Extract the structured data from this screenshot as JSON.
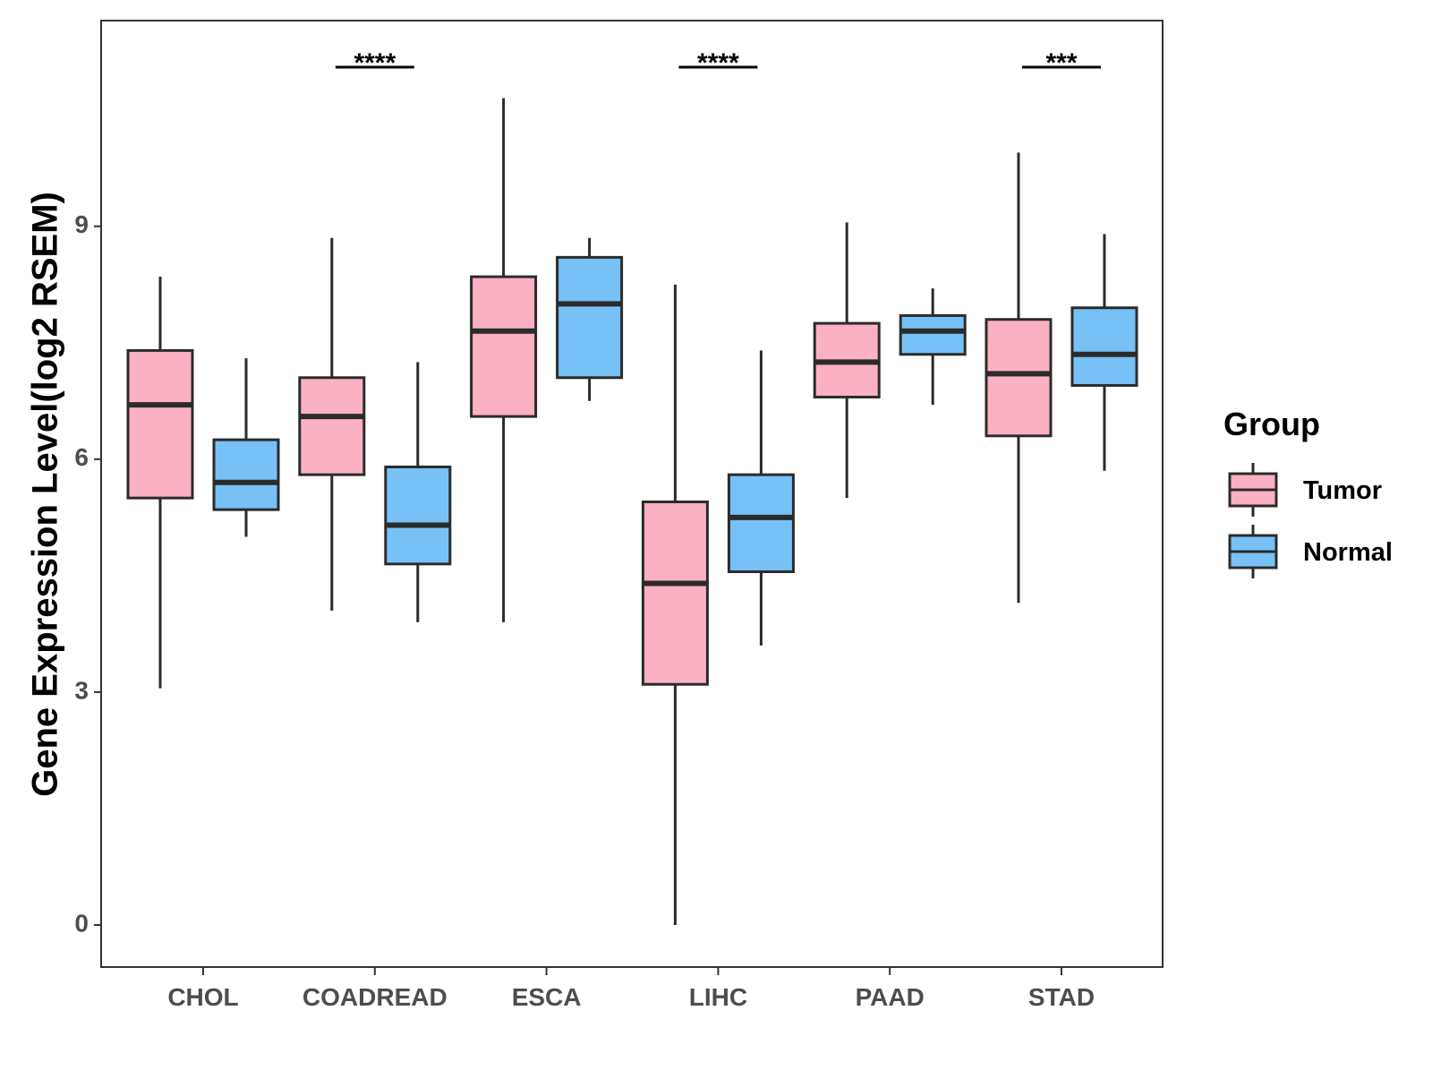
{
  "chart_data": {
    "type": "boxplot",
    "title": "",
    "xlabel": "",
    "ylabel": "Gene Expression Level(log2 RSEM)",
    "ylim": [
      -0.5,
      11.7
    ],
    "yticks": [
      0,
      3,
      6,
      9
    ],
    "grid": false,
    "categories": [
      "CHOL",
      "COADREAD",
      "ESCA",
      "LIHC",
      "PAAD",
      "STAD"
    ],
    "legend": {
      "title": "Group",
      "position": "right",
      "entries": [
        "Tumor",
        "Normal"
      ]
    },
    "series": [
      {
        "name": "Tumor",
        "color": "#fbb1c3",
        "boxes": [
          {
            "category": "CHOL",
            "min": 3.05,
            "q1": 5.5,
            "median": 6.7,
            "q3": 7.4,
            "max": 8.35
          },
          {
            "category": "COADREAD",
            "min": 4.05,
            "q1": 5.8,
            "median": 6.55,
            "q3": 7.05,
            "max": 8.85
          },
          {
            "category": "ESCA",
            "min": 3.9,
            "q1": 6.55,
            "median": 7.65,
            "q3": 8.35,
            "max": 10.65
          },
          {
            "category": "LIHC",
            "min": 0.0,
            "q1": 3.1,
            "median": 4.4,
            "q3": 5.45,
            "max": 8.25
          },
          {
            "category": "PAAD",
            "min": 5.5,
            "q1": 6.8,
            "median": 7.25,
            "q3": 7.75,
            "max": 9.05
          },
          {
            "category": "STAD",
            "min": 4.15,
            "q1": 6.3,
            "median": 7.1,
            "q3": 7.8,
            "max": 9.95
          }
        ]
      },
      {
        "name": "Normal",
        "color": "#78c1f7",
        "boxes": [
          {
            "category": "CHOL",
            "min": 5.0,
            "q1": 5.35,
            "median": 5.7,
            "q3": 6.25,
            "max": 7.3
          },
          {
            "category": "COADREAD",
            "min": 3.9,
            "q1": 4.65,
            "median": 5.15,
            "q3": 5.9,
            "max": 7.25
          },
          {
            "category": "ESCA",
            "min": 6.75,
            "q1": 7.05,
            "median": 8.0,
            "q3": 8.6,
            "max": 8.85
          },
          {
            "category": "LIHC",
            "min": 3.6,
            "q1": 4.55,
            "median": 5.25,
            "q3": 5.8,
            "max": 7.4
          },
          {
            "category": "PAAD",
            "min": 6.7,
            "q1": 7.35,
            "median": 7.65,
            "q3": 7.85,
            "max": 8.2
          },
          {
            "category": "STAD",
            "min": 5.85,
            "q1": 6.95,
            "median": 7.35,
            "q3": 7.95,
            "max": 8.9
          }
        ]
      }
    ],
    "annotations": [
      {
        "category": "COADREAD",
        "label": "****"
      },
      {
        "category": "LIHC",
        "label": "****"
      },
      {
        "category": "STAD",
        "label": "***"
      }
    ]
  }
}
